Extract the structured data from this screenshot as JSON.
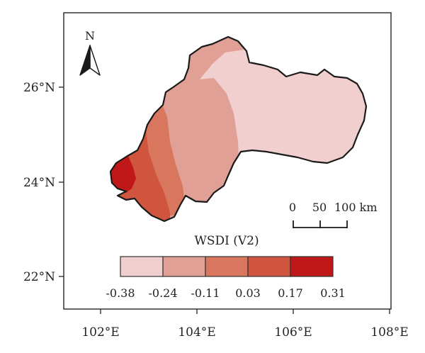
{
  "map": {
    "axes": {
      "x_ticks": [
        "102°E",
        "104°E",
        "106°E",
        "108°E"
      ],
      "y_ticks": [
        "26°N",
        "24°N",
        "22°N"
      ]
    },
    "north_arrow": {
      "label": "N",
      "icon": "north-arrow-icon"
    },
    "scale_bar": {
      "labels": [
        "0",
        "50",
        "100 km"
      ]
    },
    "legend": {
      "title": "WSDI (V2)",
      "breaks": [
        "-0.38",
        "-0.24",
        "-0.11",
        "0.03",
        "0.17",
        "0.31"
      ],
      "colors": [
        "#f1cfcf",
        "#e0a096",
        "#d8775e",
        "#d0553f",
        "#c01818"
      ]
    },
    "region_colors": {
      "very_light": "#f1cfcf",
      "light": "#e0a096",
      "medium": "#d8775e",
      "dark": "#d0553f",
      "darkest": "#c01818"
    }
  }
}
